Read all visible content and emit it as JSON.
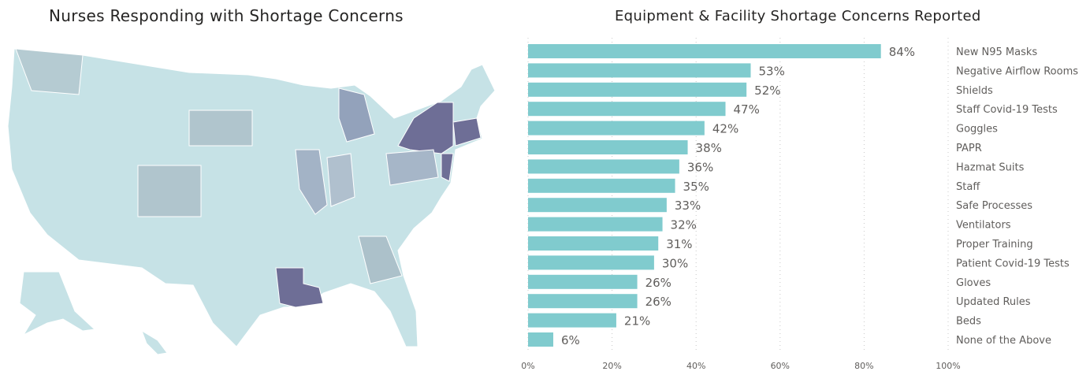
{
  "map": {
    "title": "Nurses Responding with Shortage Concerns",
    "base_color": "#c6e2e6",
    "highlight_states": [
      {
        "state": "New York",
        "color": "#6e6e96"
      },
      {
        "state": "Louisiana",
        "color": "#6e6e96"
      },
      {
        "state": "Massachusetts / Connecticut / Rhode Island",
        "color": "#6e6e96"
      },
      {
        "state": "New Jersey",
        "color": "#6e6e96"
      },
      {
        "state": "Michigan",
        "color": "#93a2bb"
      },
      {
        "state": "Illinois",
        "color": "#a3b3c6"
      },
      {
        "state": "Pennsylvania",
        "color": "#a6b6c8"
      },
      {
        "state": "Indiana",
        "color": "#b0c0ce"
      },
      {
        "state": "South Dakota",
        "color": "#b0c5cd"
      },
      {
        "state": "Colorado",
        "color": "#b0c5cd"
      },
      {
        "state": "Washington",
        "color": "#b5cbd2"
      },
      {
        "state": "Georgia",
        "color": "#acc1ca"
      }
    ]
  },
  "chart_data": {
    "type": "bar",
    "orientation": "horizontal",
    "title": "Equipment & Facility Shortage Concerns Reported",
    "categories": [
      "New N95 Masks",
      "Negative Airflow Rooms",
      "Shields",
      "Staff Covid-19 Tests",
      "Goggles",
      "PAPR",
      "Hazmat Suits",
      "Staff",
      "Safe Processes",
      "Ventilators",
      "Proper Training",
      "Patient Covid-19 Tests",
      "Gloves",
      "Updated Rules",
      "Beds",
      "None of the Above"
    ],
    "values": [
      84,
      53,
      52,
      47,
      42,
      38,
      36,
      35,
      33,
      32,
      31,
      30,
      26,
      26,
      21,
      6
    ],
    "value_labels": [
      "84%",
      "53%",
      "52%",
      "47%",
      "42%",
      "38%",
      "36%",
      "35%",
      "33%",
      "32%",
      "31%",
      "30%",
      "26%",
      "26%",
      "21%",
      "6%"
    ],
    "xlim": [
      0,
      100
    ],
    "xticks": [
      "0%",
      "20%",
      "40%",
      "60%",
      "80%",
      "100%"
    ],
    "grid": true,
    "bar_color": "#80cbce",
    "category_label_position": "right"
  }
}
